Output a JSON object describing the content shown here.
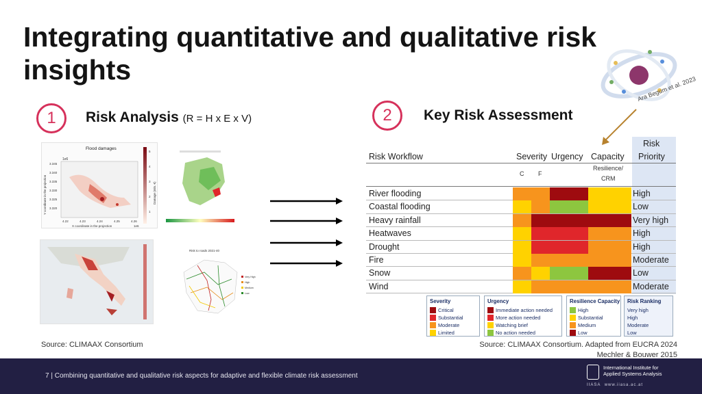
{
  "slide": {
    "title": "Integrating quantitative and qualitative risk insights",
    "citation": "Ara Begum et al. 2023"
  },
  "section1": {
    "number": "1",
    "heading": "Risk Analysis",
    "formula": "(R = H x E x V)",
    "source": "Source: CLIMAAX Consortium"
  },
  "section2": {
    "number": "2",
    "heading": "Key Risk Assessment",
    "source_line1": "Source: CLIMAAX Consortium. Adapted from EUCRA 2024",
    "source_line2": "Mechler & Bouwer 2015"
  },
  "thumbnails": {
    "flood": {
      "title": "Flood damages",
      "scale": "1e6",
      "ylabel": "Y coordinate in the projection",
      "xlabel": "X coordinate in the projection",
      "yticks": [
        "3.345",
        "3.340",
        "3.335",
        "3.330",
        "3.325",
        "3.320"
      ],
      "xticks": [
        "4.22",
        "4.23",
        "4.24",
        "4.25",
        "4.26"
      ],
      "xscale": "1e6",
      "cbar_label": "Damage (mln. €)",
      "cbar_ticks": [
        "5",
        "4",
        "3",
        "2",
        "1"
      ]
    },
    "roads": {
      "title": "Risk to roads 2021-40",
      "legend": [
        "Very High",
        "High",
        "Medium",
        "Low"
      ]
    }
  },
  "table": {
    "header": {
      "workflow": "Risk Workflow",
      "severity": "Severity",
      "urgency": "Urgency",
      "capacity": "Capacity",
      "priority_line1": "Risk",
      "priority_line2": "Priority",
      "sub_c": "C",
      "sub_f": "F",
      "sub_resilience": "Resilience/",
      "sub_crm": "CRM"
    },
    "rows": [
      {
        "label": "River flooding",
        "c": "#f7941d",
        "f": "#f7941d",
        "urgency": "#9e0b0f",
        "capacity": "#ffd200",
        "rank": "High"
      },
      {
        "label": "Coastal flooding",
        "c": "#ffd200",
        "f": "#f7941d",
        "urgency": "#8dc63f",
        "capacity": "#ffd200",
        "rank": "Low"
      },
      {
        "label": "Heavy rainfall",
        "c": "#f7941d",
        "f": "#9e0b0f",
        "urgency": "#9e0b0f",
        "capacity": "#9e0b0f",
        "rank": "Very high"
      },
      {
        "label": "Heatwaves",
        "c": "#ffd200",
        "f": "#e0262b",
        "urgency": "#e0262b",
        "capacity": "#f7941d",
        "rank": "High"
      },
      {
        "label": "Drought",
        "c": "#ffd200",
        "f": "#e0262b",
        "urgency": "#e0262b",
        "capacity": "#f7941d",
        "rank": "High"
      },
      {
        "label": "Fire",
        "c": "#ffd200",
        "f": "#f7941d",
        "urgency": "#f7941d",
        "capacity": "#f7941d",
        "rank": "Moderate"
      },
      {
        "label": "Snow",
        "c": "#f7941d",
        "f": "#ffd200",
        "urgency": "#8dc63f",
        "capacity": "#9e0b0f",
        "rank": "Low"
      },
      {
        "label": "Wind",
        "c": "#ffd200",
        "f": "#f7941d",
        "urgency": "#f7941d",
        "capacity": "#f7941d",
        "rank": "Moderate"
      }
    ]
  },
  "legends": {
    "severity": {
      "title": "Severity",
      "items": [
        "Critical",
        "Substantial",
        "Moderate",
        "Limited"
      ],
      "colors": [
        "#9e0b0f",
        "#e0262b",
        "#f7941d",
        "#ffd200"
      ]
    },
    "urgency": {
      "title": "Urgency",
      "items": [
        "Immediate action needed",
        "More action needed",
        "Watching brief",
        "No action needed"
      ],
      "colors": [
        "#9e0b0f",
        "#e0262b",
        "#ffd200",
        "#8dc63f"
      ]
    },
    "capacity": {
      "title": "Resilience Capacity",
      "items": [
        "High",
        "Substantial",
        "Medium",
        "Low"
      ],
      "colors": [
        "#8dc63f",
        "#ffd200",
        "#f7941d",
        "#9e0b0f"
      ]
    },
    "ranking": {
      "title": "Risk Ranking",
      "items": [
        "Very high",
        "High",
        "Moderate",
        "Low"
      ]
    }
  },
  "footer": {
    "page_text": "7 | Combining quantitative and qualitative risk aspects for adaptive and flexible climate risk assessment",
    "logo_line1": "International Institute for",
    "logo_line2": "Applied Systems Analysis",
    "logo_acronym": "IIASA",
    "logo_url": "www.iiasa.ac.at"
  }
}
